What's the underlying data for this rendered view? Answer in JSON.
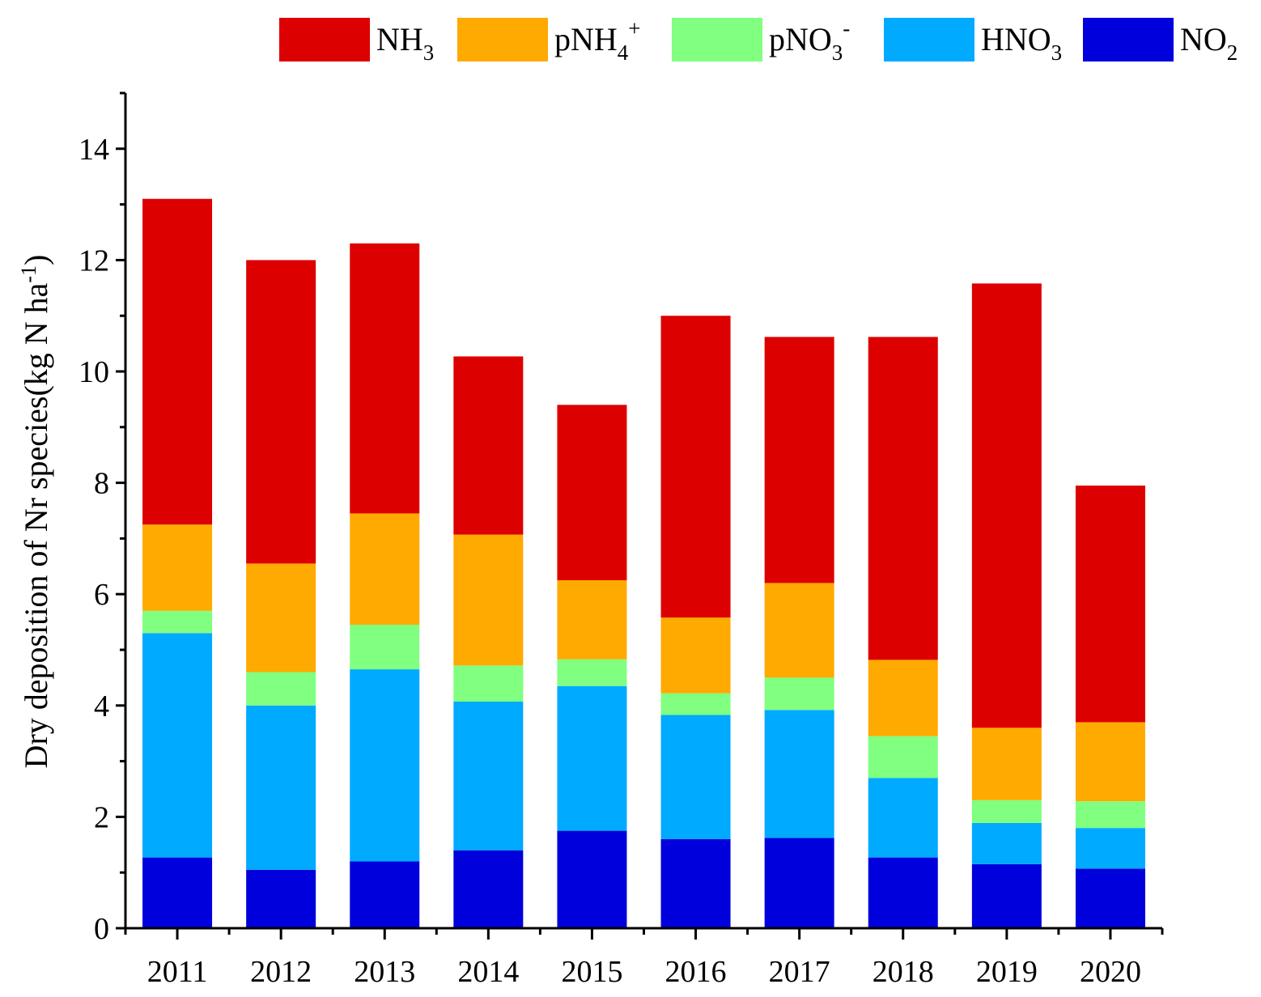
{
  "chart_data": {
    "type": "bar",
    "stacked": true,
    "title": "",
    "xlabel": "",
    "ylabel": "Dry deposition of Nr species(kg N ha",
    "ylabel_sup": "-1",
    "ylabel_close": ")",
    "ylim": [
      0,
      15
    ],
    "yticks": [
      "0",
      "2",
      "4",
      "6",
      "8",
      "10",
      "12",
      "14"
    ],
    "categories": [
      "2011",
      "2012",
      "2013",
      "2014",
      "2015",
      "2016",
      "2017",
      "2018",
      "2019",
      "2020"
    ],
    "legend_position": "top",
    "series": [
      {
        "name": "NO2",
        "label_main": "NO",
        "label_sub": "2",
        "label_sup": "",
        "color": "#0000dd",
        "values": [
          1.27,
          1.05,
          1.2,
          1.4,
          1.75,
          1.6,
          1.62,
          1.27,
          1.15,
          1.07
        ]
      },
      {
        "name": "HNO3",
        "label_main": "HNO",
        "label_sub": "3",
        "label_sup": "",
        "color": "#00aaff",
        "values": [
          4.03,
          2.95,
          3.45,
          2.67,
          2.6,
          2.23,
          2.3,
          1.43,
          0.74,
          0.73
        ]
      },
      {
        "name": "pNO3-",
        "label_main": "pNO",
        "label_sub": "3",
        "label_sup": "-",
        "color": "#80ff80",
        "values": [
          0.4,
          0.6,
          0.8,
          0.65,
          0.48,
          0.39,
          0.58,
          0.75,
          0.41,
          0.48
        ]
      },
      {
        "name": "pNH4+",
        "label_main": "pNH",
        "label_sub": "4",
        "label_sup": "+",
        "color": "#ffaa00",
        "values": [
          1.55,
          1.95,
          2.0,
          2.35,
          1.42,
          1.36,
          1.7,
          1.37,
          1.3,
          1.42
        ]
      },
      {
        "name": "NH3",
        "label_main": "NH",
        "label_sub": "3",
        "label_sup": "",
        "color": "#dd0000",
        "values": [
          5.85,
          5.45,
          4.85,
          3.2,
          3.15,
          5.42,
          4.42,
          5.8,
          7.98,
          4.25
        ]
      }
    ],
    "legend_order": [
      "NH3",
      "pNH4+",
      "pNO3-",
      "HNO3",
      "NO2"
    ]
  }
}
